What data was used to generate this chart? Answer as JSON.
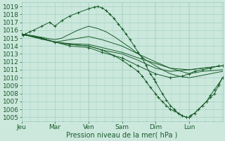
{
  "xlabel": "Pression niveau de la mer( hPa )",
  "bg_color": "#cce8dd",
  "grid_color": "#99ccbb",
  "line_color": "#1a5c2a",
  "ylim": [
    1004.5,
    1019.5
  ],
  "yticks": [
    1005,
    1006,
    1007,
    1008,
    1009,
    1010,
    1011,
    1012,
    1013,
    1014,
    1015,
    1016,
    1017,
    1018,
    1019
  ],
  "day_labels": [
    "Jeu",
    "Mar",
    "Ven",
    "Sam",
    "Dim",
    "Lun"
  ],
  "day_positions": [
    0,
    0.83,
    1.67,
    2.5,
    3.33,
    4.17
  ],
  "xlim": [
    0,
    5.0
  ],
  "series": [
    {
      "x": [
        0,
        0.05,
        0.1,
        0.2,
        0.3,
        0.5,
        0.7,
        0.83,
        1.0,
        1.2,
        1.4,
        1.67,
        1.8,
        1.9,
        2.0,
        2.1,
        2.2,
        2.3,
        2.4,
        2.5,
        2.6,
        2.7,
        2.8,
        2.9,
        3.0,
        3.1,
        3.2,
        3.3,
        3.33,
        3.5,
        3.6,
        3.7,
        3.8,
        3.9,
        4.0,
        4.1,
        4.17,
        4.2,
        4.3,
        4.4,
        4.5,
        4.6,
        4.7,
        4.8,
        4.9,
        5.0
      ],
      "y": [
        1015.5,
        1015.4,
        1015.5,
        1015.8,
        1016.0,
        1016.5,
        1017.0,
        1016.5,
        1017.2,
        1017.8,
        1018.2,
        1018.7,
        1018.9,
        1019.0,
        1018.8,
        1018.5,
        1018.0,
        1017.5,
        1016.8,
        1016.2,
        1015.5,
        1014.8,
        1014.0,
        1013.2,
        1012.5,
        1011.5,
        1010.5,
        1009.8,
        1009.5,
        1008.0,
        1007.2,
        1006.5,
        1006.0,
        1005.5,
        1005.2,
        1005.0,
        1005.0,
        1005.2,
        1005.5,
        1006.0,
        1006.5,
        1007.0,
        1007.5,
        1008.0,
        1009.0,
        1010.0
      ],
      "marker": "+"
    },
    {
      "x": [
        0,
        0.3,
        0.6,
        0.83,
        1.0,
        1.2,
        1.4,
        1.67,
        1.9,
        2.1,
        2.3,
        2.5,
        2.7,
        2.9,
        3.1,
        3.33,
        3.5,
        3.7,
        3.9,
        4.17,
        4.4,
        4.7,
        5.0
      ],
      "y": [
        1015.5,
        1015.3,
        1015.0,
        1014.8,
        1015.0,
        1015.5,
        1016.0,
        1016.5,
        1016.2,
        1015.8,
        1015.2,
        1014.5,
        1013.8,
        1013.0,
        1012.2,
        1011.5,
        1011.0,
        1010.5,
        1010.2,
        1010.0,
        1010.2,
        1010.5,
        1010.8
      ],
      "marker": null
    },
    {
      "x": [
        0,
        0.4,
        0.83,
        1.2,
        1.67,
        2.0,
        2.5,
        2.9,
        3.33,
        3.7,
        4.17,
        4.5,
        5.0
      ],
      "y": [
        1015.5,
        1015.0,
        1014.5,
        1014.8,
        1015.2,
        1014.8,
        1014.0,
        1013.0,
        1012.0,
        1011.2,
        1010.5,
        1010.8,
        1011.0
      ],
      "marker": null
    },
    {
      "x": [
        0,
        0.4,
        0.83,
        1.2,
        1.67,
        2.0,
        2.5,
        2.9,
        3.33,
        3.7,
        4.17,
        4.5,
        5.0
      ],
      "y": [
        1015.5,
        1015.0,
        1014.5,
        1014.2,
        1014.0,
        1013.5,
        1013.0,
        1012.2,
        1011.2,
        1010.8,
        1011.0,
        1011.2,
        1011.5
      ],
      "marker": null
    },
    {
      "x": [
        0,
        0.5,
        0.83,
        1.2,
        1.67,
        2.0,
        2.3,
        2.5,
        2.7,
        2.9,
        3.0,
        3.1,
        3.2,
        3.33,
        3.4,
        3.5,
        3.6,
        3.7,
        3.8,
        3.9,
        4.0,
        4.1,
        4.17,
        4.2,
        4.3,
        4.4,
        4.5,
        4.6,
        4.7,
        4.8,
        4.9,
        5.0
      ],
      "y": [
        1015.5,
        1015.0,
        1014.5,
        1014.2,
        1014.0,
        1013.5,
        1012.8,
        1012.2,
        1011.5,
        1010.8,
        1010.2,
        1009.5,
        1008.8,
        1008.0,
        1007.5,
        1007.0,
        1006.5,
        1006.0,
        1005.8,
        1005.5,
        1005.2,
        1005.0,
        1005.0,
        1005.2,
        1005.5,
        1006.0,
        1006.5,
        1007.0,
        1007.8,
        1008.5,
        1009.2,
        1010.0
      ],
      "marker": "+"
    },
    {
      "x": [
        0,
        0.5,
        0.83,
        1.2,
        1.67,
        2.0,
        2.5,
        2.9,
        3.33,
        3.7,
        4.0,
        4.17,
        4.3,
        4.5,
        4.7,
        4.9,
        5.0
      ],
      "y": [
        1015.5,
        1015.0,
        1014.5,
        1014.0,
        1013.8,
        1013.2,
        1012.5,
        1011.5,
        1010.5,
        1010.0,
        1010.2,
        1010.5,
        1010.8,
        1011.0,
        1011.2,
        1011.5,
        1011.5
      ],
      "marker": "+"
    },
    {
      "x": [
        0,
        0.5,
        0.83,
        1.2,
        1.67,
        2.0,
        2.5,
        2.9,
        3.33,
        3.7,
        4.17,
        4.5,
        5.0
      ],
      "y": [
        1015.5,
        1015.0,
        1014.5,
        1014.3,
        1014.2,
        1013.8,
        1013.2,
        1012.5,
        1011.8,
        1011.2,
        1011.0,
        1011.2,
        1011.5
      ],
      "marker": null
    }
  ]
}
